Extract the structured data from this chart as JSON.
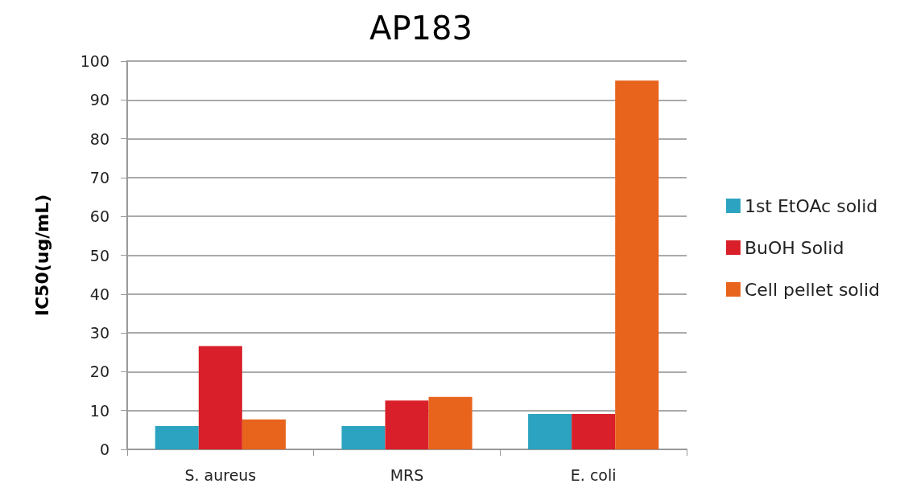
{
  "chart_data": {
    "type": "bar",
    "title": "AP183",
    "ylabel": "IC50(ug/mL)",
    "categories": [
      "S. aureus",
      "MRS",
      "E. coli"
    ],
    "series": [
      {
        "name": "1st EtOAc solid",
        "color": "#2ca3c0",
        "values": [
          6.0,
          6.0,
          9.1
        ]
      },
      {
        "name": "BuOH Solid",
        "color": "#d91f29",
        "values": [
          26.6,
          12.6,
          9.1
        ]
      },
      {
        "name": "Cell pellet solid",
        "color": "#e8631c",
        "values": [
          7.7,
          13.5,
          95
        ]
      }
    ],
    "ylim": [
      0,
      100
    ],
    "yticks": [
      0,
      10,
      20,
      30,
      40,
      50,
      60,
      70,
      80,
      90,
      100
    ],
    "grid": "y",
    "legend": "right"
  }
}
